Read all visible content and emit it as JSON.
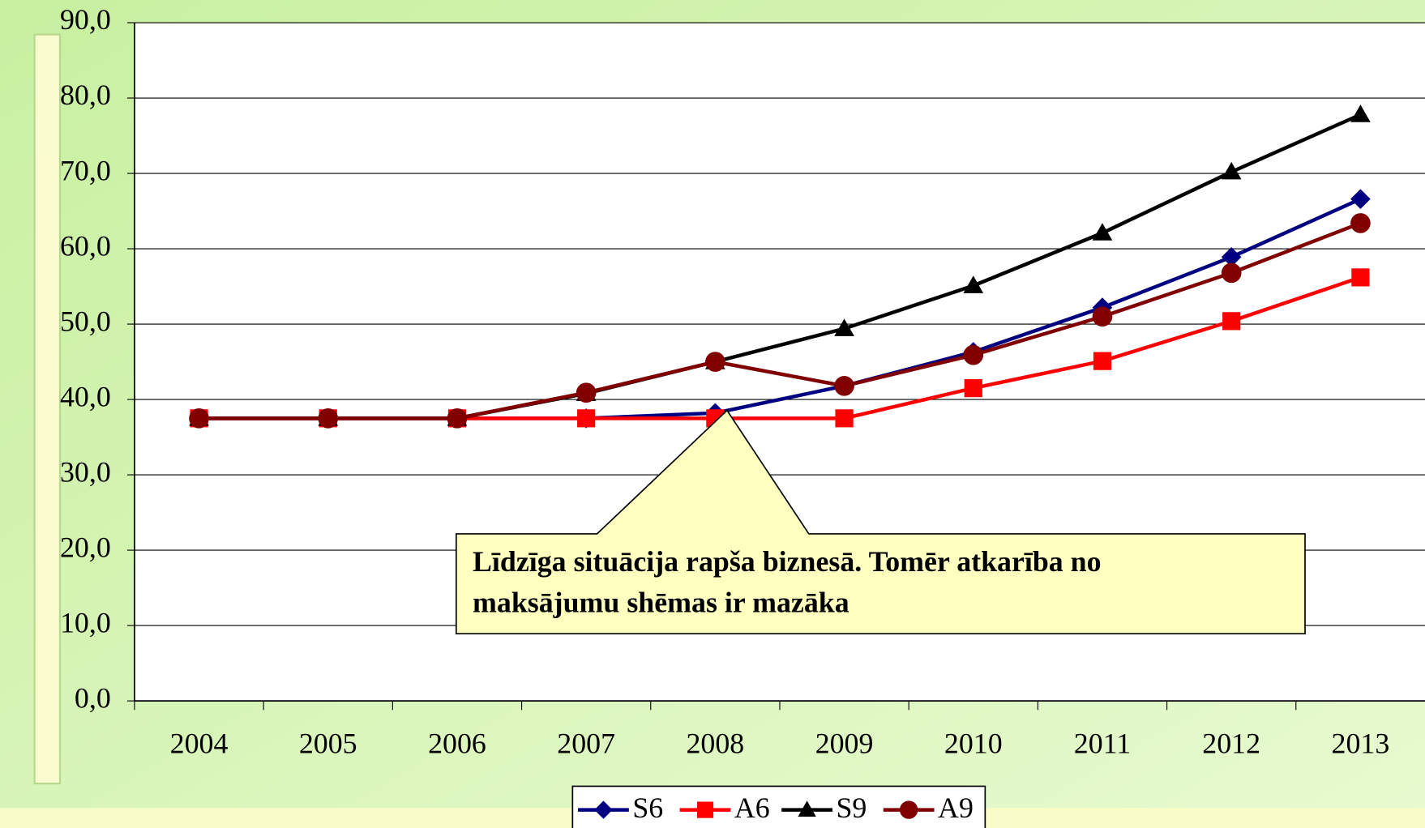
{
  "chart_data": {
    "type": "line",
    "categories": [
      "2004",
      "2005",
      "2006",
      "2007",
      "2008",
      "2009",
      "2010",
      "2011",
      "2012",
      "2013"
    ],
    "series": [
      {
        "name": "S6",
        "color": "#000080",
        "marker": "diamond",
        "values": [
          37.5,
          37.5,
          37.5,
          37.5,
          38.2,
          41.8,
          46.3,
          52.2,
          58.9,
          66.6
        ]
      },
      {
        "name": "A6",
        "color": "#ff0000",
        "marker": "square",
        "values": [
          37.5,
          37.5,
          37.5,
          37.5,
          37.5,
          37.5,
          41.5,
          45.1,
          50.4,
          56.2
        ]
      },
      {
        "name": "S9",
        "color": "#000000",
        "marker": "triangle",
        "values": [
          37.5,
          37.5,
          37.5,
          40.8,
          45.0,
          49.4,
          55.1,
          62.1,
          70.2,
          77.8
        ]
      },
      {
        "name": "A9",
        "color": "#800000",
        "marker": "circle",
        "values": [
          37.5,
          37.5,
          37.5,
          40.9,
          45.0,
          41.8,
          45.9,
          51.0,
          56.8,
          63.4
        ]
      }
    ],
    "ylim": [
      0,
      90
    ],
    "yticks": [
      {
        "value": 0,
        "label": "0,0"
      },
      {
        "value": 10,
        "label": "10,0"
      },
      {
        "value": 20,
        "label": "20,0"
      },
      {
        "value": 30,
        "label": "30,0"
      },
      {
        "value": 40,
        "label": "40,0"
      },
      {
        "value": 50,
        "label": "50,0"
      },
      {
        "value": 60,
        "label": "60,0"
      },
      {
        "value": 70,
        "label": "70,0"
      },
      {
        "value": 80,
        "label": "80,0"
      },
      {
        "value": 90,
        "label": "90,0"
      }
    ],
    "grid": true,
    "legend": "bottom",
    "annotation": [
      "Līdzīga situācija rapša biznesā. Tomēr atkarība no",
      "maksājumu shēmas ir mazāka"
    ]
  }
}
